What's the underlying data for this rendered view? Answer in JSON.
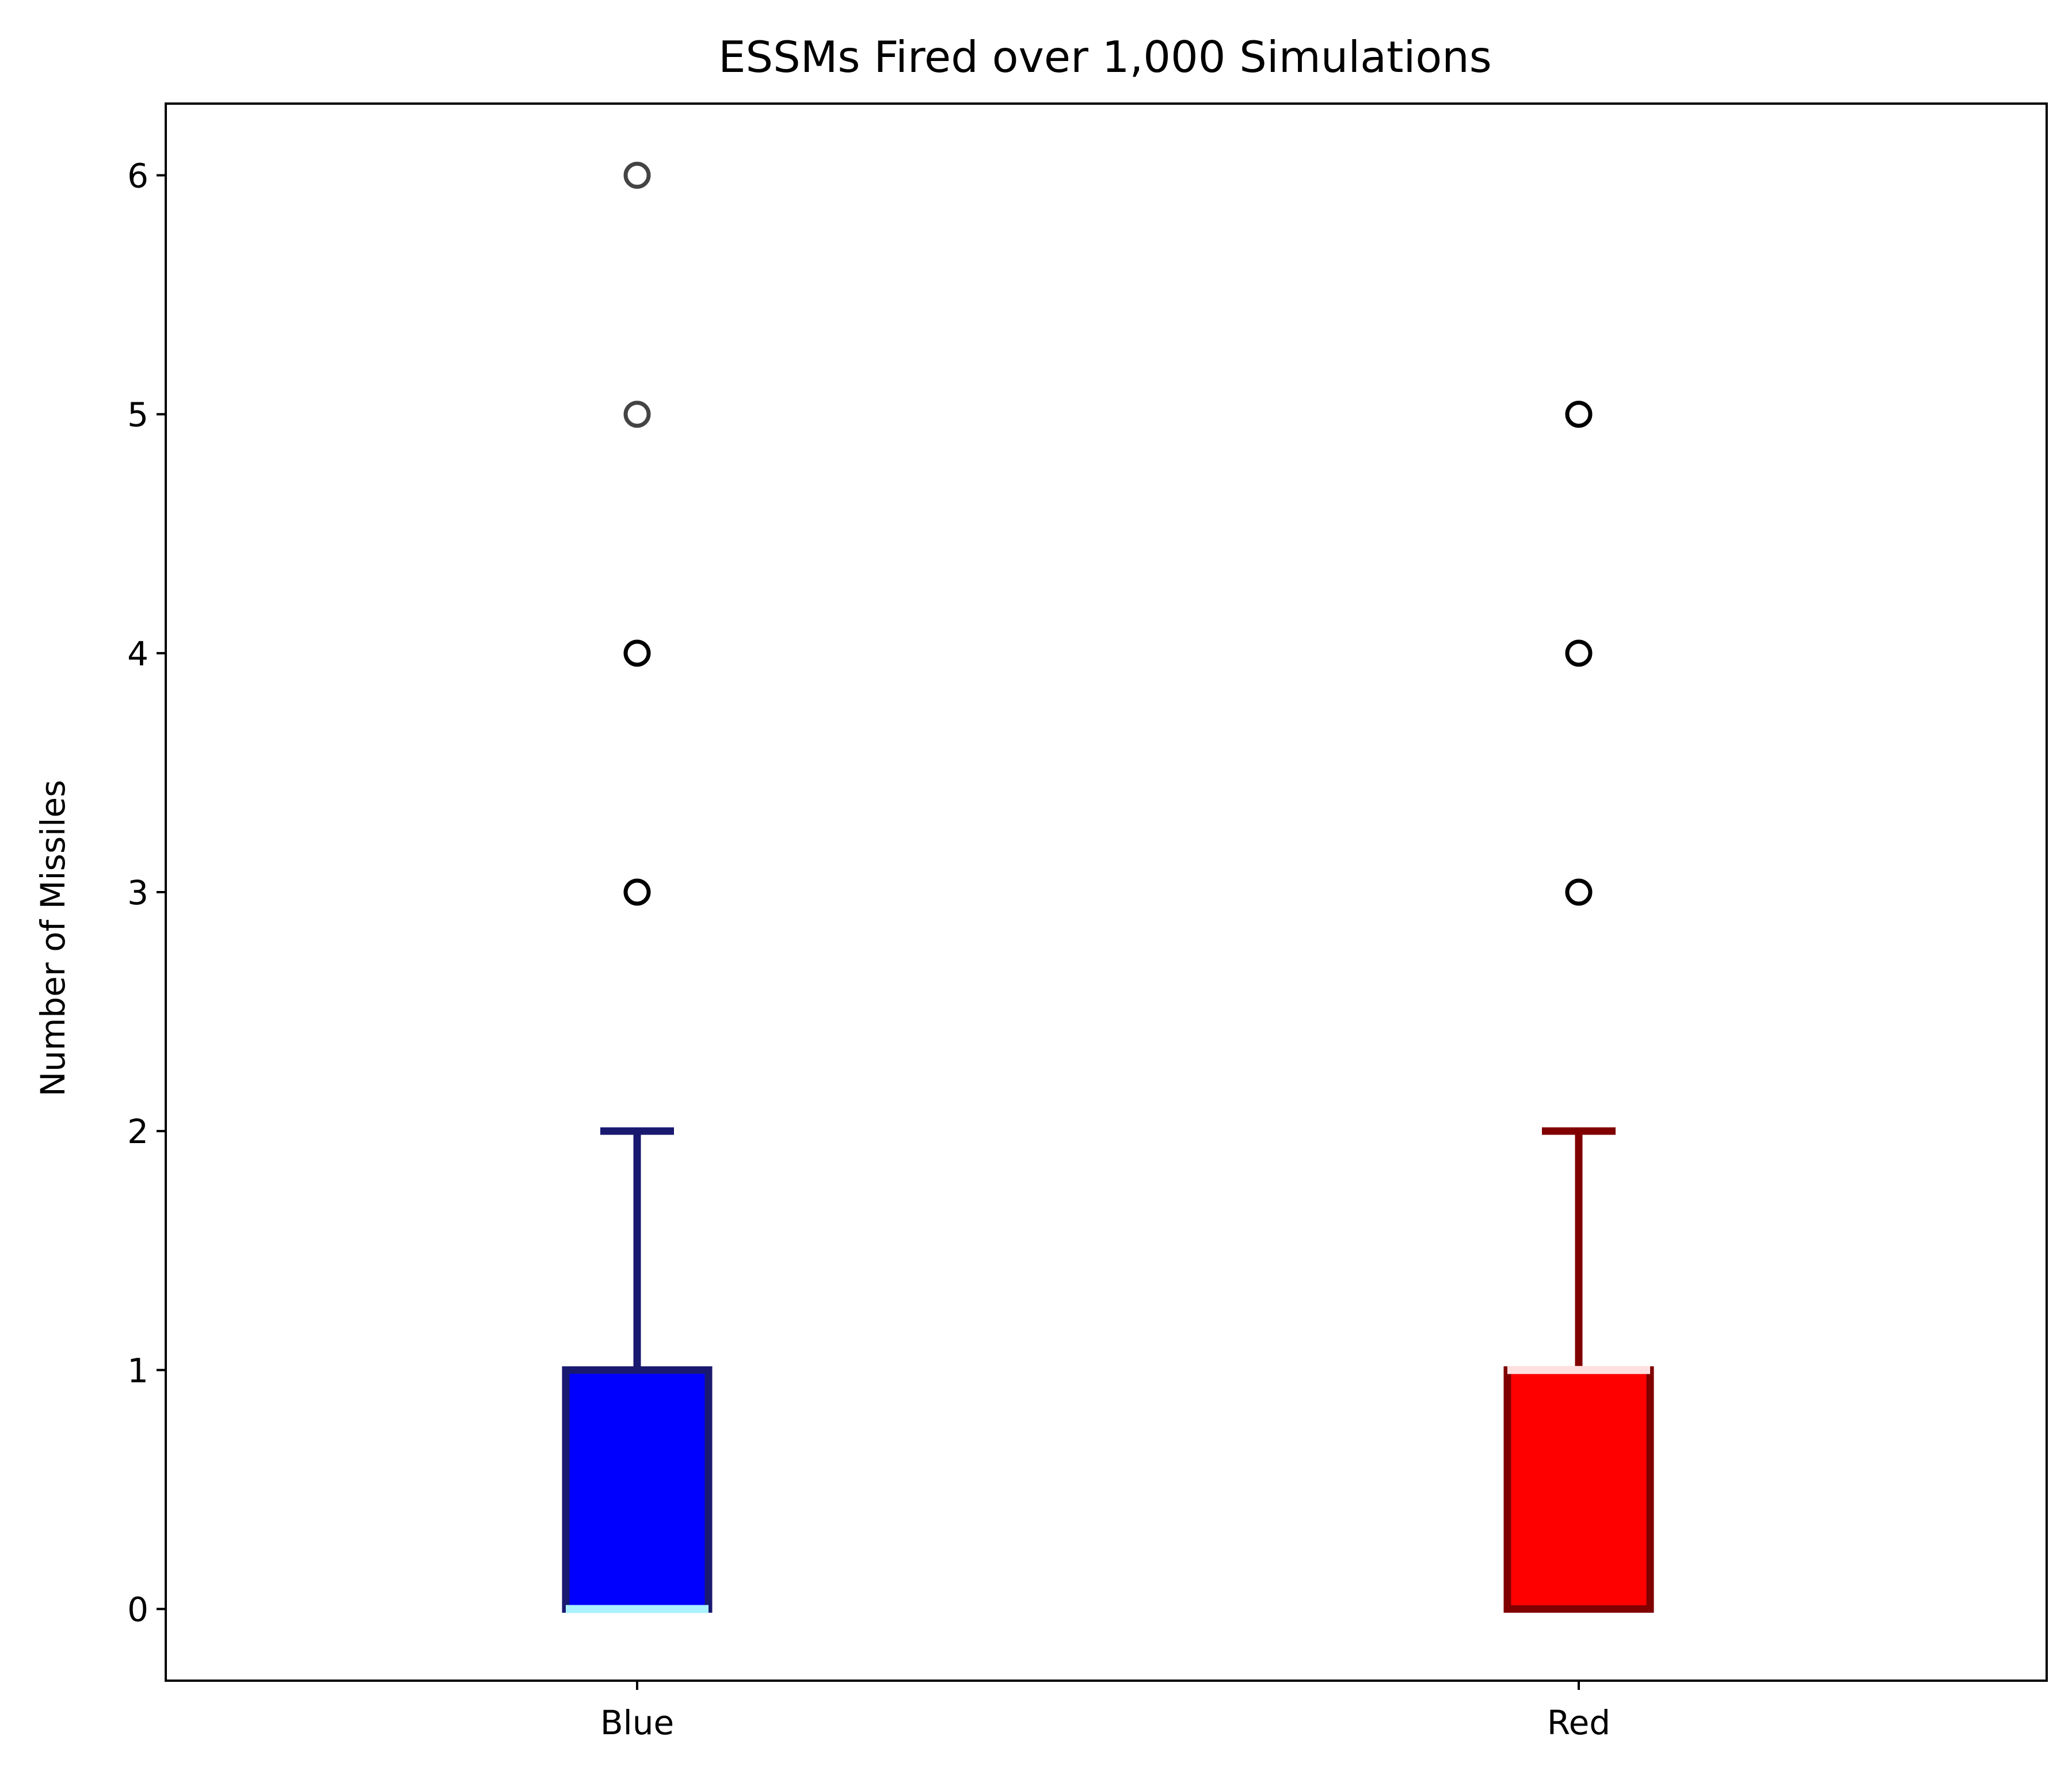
{
  "chart_data": {
    "type": "box",
    "title": "ESSMs Fired over 1,000 Simulations",
    "xlabel": "",
    "ylabel": "Number of Missiles",
    "ylim": [
      -0.3,
      6.3
    ],
    "yticks": [
      0,
      1,
      2,
      3,
      4,
      5,
      6
    ],
    "ytick_labels": [
      "0",
      "1",
      "2",
      "3",
      "4",
      "5",
      "6"
    ],
    "categories": [
      "Blue",
      "Red"
    ],
    "grid": false,
    "series": [
      {
        "name": "Blue",
        "q1": 0,
        "median": 0,
        "q3": 1,
        "whisker_low": 0,
        "whisker_high": 2,
        "outliers": [
          3,
          4,
          5,
          6
        ],
        "box_fill": "#0000ff",
        "box_edge": "#191970",
        "median_color": "#aaf0ff",
        "whisker_color": "#191970",
        "outlier_colors": [
          "#000000",
          "#000000",
          "#444444",
          "#444444"
        ]
      },
      {
        "name": "Red",
        "q1": 0,
        "median": 1,
        "q3": 1,
        "whisker_low": 0,
        "whisker_high": 2,
        "outliers": [
          3,
          4,
          5
        ],
        "box_fill": "#ff0000",
        "box_edge": "#800000",
        "median_color": "#ffe0e0",
        "whisker_color": "#800000",
        "outlier_colors": [
          "#000000",
          "#000000",
          "#000000"
        ]
      }
    ]
  }
}
